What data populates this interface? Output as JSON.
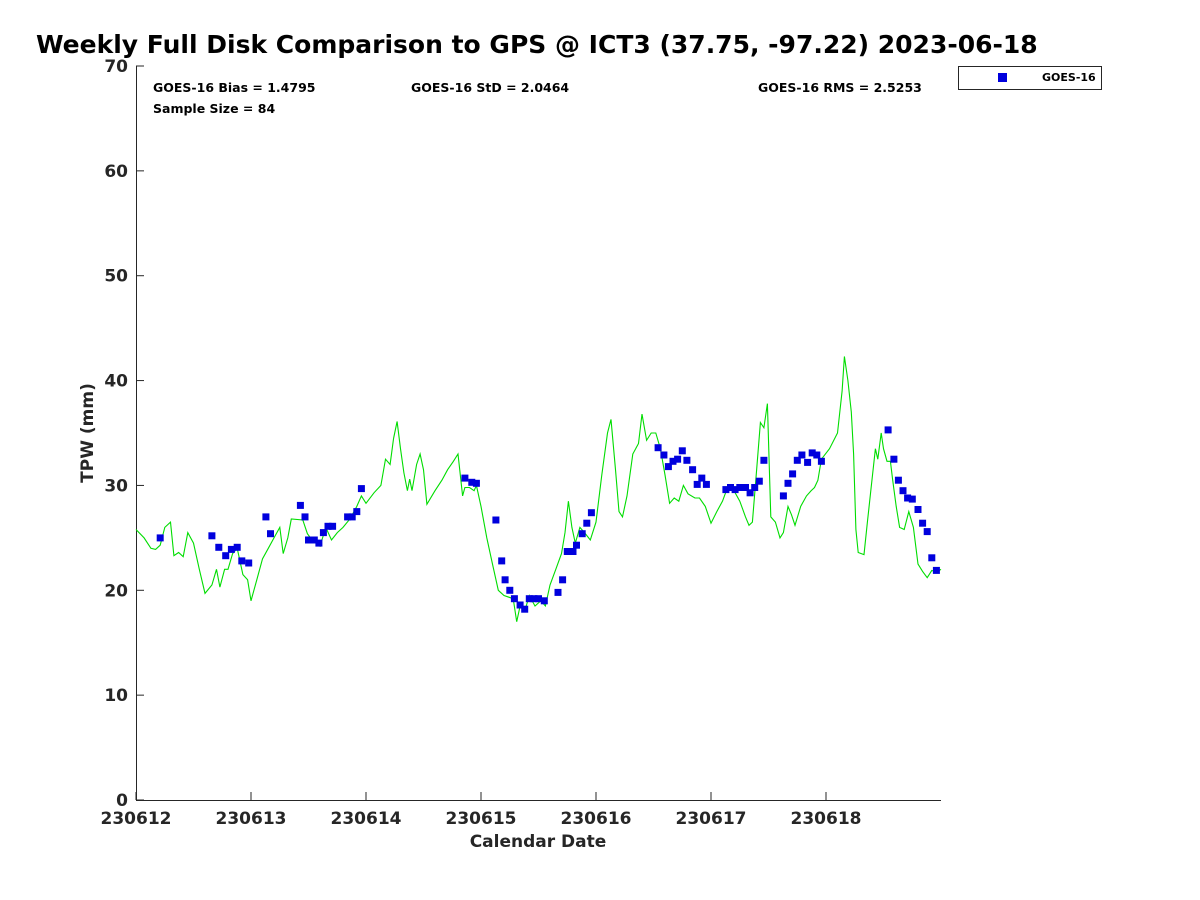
{
  "chart_data": {
    "type": "scatter",
    "title": "Weekly Full Disk Comparison to GPS @ ICT3 (37.75, -97.22) 2023-06-18",
    "xlabel": "Calendar Date",
    "ylabel": "TPW (mm)",
    "x_ticks": [
      "230612",
      "230613",
      "230614",
      "230615",
      "230616",
      "230617",
      "230618"
    ],
    "x_range_days": [
      0,
      7
    ],
    "ylim": [
      0,
      70
    ],
    "y_ticks": [
      0,
      10,
      20,
      30,
      40,
      50,
      60,
      70
    ],
    "grid": false,
    "legend_position": "top-right, outside plot",
    "stats": {
      "bias": "GOES-16 Bias = 1.4795",
      "std": "GOES-16 StD = 2.0464",
      "rms": "GOES-16 RMS = 2.5253",
      "sample": "Sample Size = 84"
    },
    "series": [
      {
        "name": "GOES-16",
        "kind": "markers",
        "color": "#0000dd",
        "marker": "square",
        "points": [
          [
            0.21,
            25.0
          ],
          [
            0.66,
            25.2
          ],
          [
            0.72,
            24.1
          ],
          [
            0.78,
            23.3
          ],
          [
            0.83,
            23.9
          ],
          [
            0.88,
            24.1
          ],
          [
            0.92,
            22.8
          ],
          [
            0.98,
            22.6
          ],
          [
            1.13,
            27.0
          ],
          [
            1.17,
            25.4
          ],
          [
            1.43,
            28.1
          ],
          [
            1.47,
            27.0
          ],
          [
            1.5,
            24.8
          ],
          [
            1.55,
            24.8
          ],
          [
            1.59,
            24.5
          ],
          [
            1.63,
            25.5
          ],
          [
            1.67,
            26.1
          ],
          [
            1.71,
            26.1
          ],
          [
            1.84,
            27.0
          ],
          [
            1.88,
            27.0
          ],
          [
            1.92,
            27.5
          ],
          [
            1.96,
            29.7
          ],
          [
            2.86,
            30.7
          ],
          [
            2.92,
            30.3
          ],
          [
            2.96,
            30.2
          ],
          [
            3.13,
            26.7
          ],
          [
            3.18,
            22.8
          ],
          [
            3.21,
            21.0
          ],
          [
            3.25,
            20.0
          ],
          [
            3.29,
            19.2
          ],
          [
            3.34,
            18.6
          ],
          [
            3.38,
            18.2
          ],
          [
            3.42,
            19.2
          ],
          [
            3.46,
            19.2
          ],
          [
            3.5,
            19.2
          ],
          [
            3.55,
            19.0
          ],
          [
            3.67,
            19.8
          ],
          [
            3.71,
            21.0
          ],
          [
            3.75,
            23.7
          ],
          [
            3.8,
            23.7
          ],
          [
            3.83,
            24.3
          ],
          [
            3.88,
            25.4
          ],
          [
            3.92,
            26.4
          ],
          [
            3.96,
            27.4
          ],
          [
            4.54,
            33.6
          ],
          [
            4.59,
            32.9
          ],
          [
            4.63,
            31.8
          ],
          [
            4.67,
            32.3
          ],
          [
            4.71,
            32.5
          ],
          [
            4.75,
            33.3
          ],
          [
            4.79,
            32.4
          ],
          [
            4.84,
            31.5
          ],
          [
            4.88,
            30.1
          ],
          [
            4.92,
            30.7
          ],
          [
            4.96,
            30.1
          ],
          [
            5.13,
            29.6
          ],
          [
            5.17,
            29.8
          ],
          [
            5.21,
            29.6
          ],
          [
            5.25,
            29.8
          ],
          [
            5.3,
            29.8
          ],
          [
            5.34,
            29.3
          ],
          [
            5.38,
            29.8
          ],
          [
            5.42,
            30.4
          ],
          [
            5.46,
            32.4
          ],
          [
            5.63,
            29.0
          ],
          [
            5.67,
            30.2
          ],
          [
            5.71,
            31.1
          ],
          [
            5.75,
            32.4
          ],
          [
            5.79,
            32.9
          ],
          [
            5.84,
            32.2
          ],
          [
            5.88,
            33.1
          ],
          [
            5.92,
            32.9
          ],
          [
            5.96,
            32.3
          ],
          [
            6.54,
            35.3
          ],
          [
            6.59,
            32.5
          ],
          [
            6.63,
            30.5
          ],
          [
            6.67,
            29.5
          ],
          [
            6.71,
            28.8
          ],
          [
            6.75,
            28.7
          ],
          [
            6.8,
            27.7
          ],
          [
            6.84,
            26.4
          ],
          [
            6.88,
            25.6
          ],
          [
            6.92,
            23.1
          ],
          [
            6.96,
            21.9
          ]
        ]
      },
      {
        "name": "",
        "kind": "line",
        "color": "#00dd00",
        "points": [
          [
            0.0,
            25.8
          ],
          [
            0.07,
            25.0
          ],
          [
            0.13,
            24.0
          ],
          [
            0.17,
            23.9
          ],
          [
            0.21,
            24.3
          ],
          [
            0.25,
            26.0
          ],
          [
            0.3,
            26.5
          ],
          [
            0.33,
            23.3
          ],
          [
            0.37,
            23.6
          ],
          [
            0.41,
            23.2
          ],
          [
            0.45,
            25.5
          ],
          [
            0.5,
            24.5
          ],
          [
            0.55,
            22.0
          ],
          [
            0.6,
            19.7
          ],
          [
            0.66,
            20.5
          ],
          [
            0.7,
            22.0
          ],
          [
            0.73,
            20.3
          ],
          [
            0.77,
            22.0
          ],
          [
            0.8,
            22.0
          ],
          [
            0.84,
            23.5
          ],
          [
            0.88,
            24.0
          ],
          [
            0.93,
            21.5
          ],
          [
            0.97,
            21.0
          ],
          [
            1.0,
            19.0
          ],
          [
            1.05,
            21.0
          ],
          [
            1.1,
            23.0
          ],
          [
            1.15,
            24.0
          ],
          [
            1.2,
            25.0
          ],
          [
            1.25,
            26.0
          ],
          [
            1.28,
            23.5
          ],
          [
            1.32,
            25.0
          ],
          [
            1.35,
            26.8
          ],
          [
            1.45,
            26.7
          ],
          [
            1.49,
            25.4
          ],
          [
            1.53,
            24.8
          ],
          [
            1.6,
            24.2
          ],
          [
            1.65,
            26.0
          ],
          [
            1.7,
            24.8
          ],
          [
            1.75,
            25.5
          ],
          [
            1.8,
            26.0
          ],
          [
            1.86,
            26.8
          ],
          [
            1.92,
            28.0
          ],
          [
            1.96,
            29.0
          ],
          [
            2.0,
            28.3
          ],
          [
            2.07,
            29.3
          ],
          [
            2.13,
            30.0
          ],
          [
            2.17,
            32.5
          ],
          [
            2.21,
            32.0
          ],
          [
            2.24,
            34.5
          ],
          [
            2.27,
            36.1
          ],
          [
            2.3,
            33.5
          ],
          [
            2.33,
            31.2
          ],
          [
            2.36,
            29.5
          ],
          [
            2.38,
            30.6
          ],
          [
            2.4,
            29.5
          ],
          [
            2.44,
            32.0
          ],
          [
            2.47,
            33.0
          ],
          [
            2.5,
            31.5
          ],
          [
            2.53,
            28.2
          ],
          [
            2.6,
            29.5
          ],
          [
            2.66,
            30.5
          ],
          [
            2.71,
            31.5
          ],
          [
            2.76,
            32.3
          ],
          [
            2.8,
            33.0
          ],
          [
            2.82,
            31.0
          ],
          [
            2.84,
            29.0
          ],
          [
            2.86,
            29.8
          ],
          [
            2.9,
            29.8
          ],
          [
            2.94,
            29.5
          ],
          [
            2.96,
            30.0
          ],
          [
            3.0,
            28.0
          ],
          [
            3.05,
            25.0
          ],
          [
            3.1,
            22.5
          ],
          [
            3.15,
            20.0
          ],
          [
            3.2,
            19.5
          ],
          [
            3.28,
            19.2
          ],
          [
            3.31,
            17.0
          ],
          [
            3.34,
            18.5
          ],
          [
            3.38,
            18.0
          ],
          [
            3.42,
            19.5
          ],
          [
            3.47,
            18.5
          ],
          [
            3.52,
            19.0
          ],
          [
            3.56,
            18.5
          ],
          [
            3.6,
            20.5
          ],
          [
            3.65,
            22.0
          ],
          [
            3.7,
            23.5
          ],
          [
            3.73,
            25.5
          ],
          [
            3.76,
            28.5
          ],
          [
            3.79,
            26.0
          ],
          [
            3.82,
            24.5
          ],
          [
            3.86,
            26.0
          ],
          [
            3.9,
            25.5
          ],
          [
            3.95,
            24.8
          ],
          [
            4.0,
            26.5
          ],
          [
            4.05,
            31.0
          ],
          [
            4.1,
            35.0
          ],
          [
            4.13,
            36.3
          ],
          [
            4.17,
            31.5
          ],
          [
            4.2,
            27.5
          ],
          [
            4.23,
            27.0
          ],
          [
            4.27,
            29.0
          ],
          [
            4.32,
            33.0
          ],
          [
            4.37,
            34.0
          ],
          [
            4.4,
            36.8
          ],
          [
            4.44,
            34.3
          ],
          [
            4.48,
            35.0
          ],
          [
            4.52,
            35.0
          ],
          [
            4.56,
            33.5
          ],
          [
            4.6,
            31.0
          ],
          [
            4.64,
            28.3
          ],
          [
            4.68,
            28.8
          ],
          [
            4.72,
            28.5
          ],
          [
            4.76,
            30.0
          ],
          [
            4.8,
            29.2
          ],
          [
            4.86,
            28.8
          ],
          [
            4.9,
            28.8
          ],
          [
            4.95,
            28.0
          ],
          [
            5.0,
            26.4
          ],
          [
            5.05,
            27.5
          ],
          [
            5.1,
            28.5
          ],
          [
            5.15,
            30.0
          ],
          [
            5.2,
            29.5
          ],
          [
            5.25,
            28.5
          ],
          [
            5.3,
            27.0
          ],
          [
            5.33,
            26.2
          ],
          [
            5.36,
            26.5
          ],
          [
            5.39,
            30.5
          ],
          [
            5.43,
            36.0
          ],
          [
            5.46,
            35.5
          ],
          [
            5.49,
            37.8
          ],
          [
            5.52,
            27.0
          ],
          [
            5.56,
            26.5
          ],
          [
            5.6,
            25.0
          ],
          [
            5.63,
            25.5
          ],
          [
            5.67,
            28.0
          ],
          [
            5.7,
            27.2
          ],
          [
            5.73,
            26.2
          ],
          [
            5.78,
            28.0
          ],
          [
            5.83,
            29.0
          ],
          [
            5.87,
            29.5
          ],
          [
            5.9,
            29.8
          ],
          [
            5.93,
            30.5
          ],
          [
            5.96,
            32.5
          ],
          [
            6.03,
            33.5
          ],
          [
            6.1,
            35.0
          ],
          [
            6.14,
            39.0
          ],
          [
            6.16,
            42.3
          ],
          [
            6.19,
            40.0
          ],
          [
            6.22,
            37.0
          ],
          [
            6.24,
            33.0
          ],
          [
            6.26,
            25.8
          ],
          [
            6.28,
            23.6
          ],
          [
            6.33,
            23.4
          ],
          [
            6.36,
            26.5
          ],
          [
            6.39,
            29.5
          ],
          [
            6.43,
            33.5
          ],
          [
            6.45,
            32.5
          ],
          [
            6.48,
            35.0
          ],
          [
            6.5,
            33.5
          ],
          [
            6.53,
            32.3
          ],
          [
            6.56,
            32.3
          ],
          [
            6.58,
            30.5
          ],
          [
            6.61,
            28.0
          ],
          [
            6.64,
            26.0
          ],
          [
            6.68,
            25.8
          ],
          [
            6.72,
            27.5
          ],
          [
            6.76,
            26.0
          ],
          [
            6.8,
            22.5
          ],
          [
            6.84,
            21.8
          ],
          [
            6.88,
            21.2
          ],
          [
            6.92,
            21.9
          ],
          [
            6.96,
            21.7
          ],
          [
            7.0,
            22.0
          ]
        ]
      }
    ]
  }
}
